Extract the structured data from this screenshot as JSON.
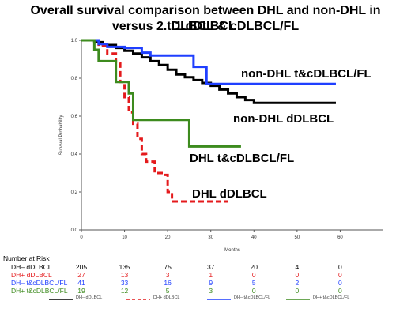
{
  "chart_data": {
    "type": "line",
    "title": "Overall survival comparison between DHL and non-DHL in 1.dDLBCL",
    "subtitle": "versus 2.tDLBCL & cDLBCL/FL",
    "xlabel": "Months",
    "ylabel": "Survival Probability",
    "xlim": [
      0,
      70
    ],
    "ylim": [
      0,
      1.0
    ],
    "x_ticks": [
      "0",
      "10",
      "20",
      "30",
      "40",
      "50",
      "60"
    ],
    "y_ticks": [
      "0.0",
      "0.2",
      "0.4",
      "0.6",
      "0.8",
      "1.0"
    ],
    "grid": false,
    "series": [
      {
        "name": "DH– dDLBCL",
        "annotation": "non-DHL dDLBCL",
        "color": "#000000",
        "dash": false,
        "points": [
          [
            0,
            1.0
          ],
          [
            3,
            0.99
          ],
          [
            5,
            0.975
          ],
          [
            8,
            0.96
          ],
          [
            10,
            0.945
          ],
          [
            12,
            0.93
          ],
          [
            14,
            0.91
          ],
          [
            16,
            0.89
          ],
          [
            18,
            0.87
          ],
          [
            20,
            0.845
          ],
          [
            22,
            0.82
          ],
          [
            24,
            0.805
          ],
          [
            26,
            0.79
          ],
          [
            28,
            0.775
          ],
          [
            30,
            0.76
          ],
          [
            32,
            0.74
          ],
          [
            34,
            0.72
          ],
          [
            36,
            0.7
          ],
          [
            38,
            0.685
          ],
          [
            40,
            0.67
          ],
          [
            59,
            0.67
          ]
        ]
      },
      {
        "name": "DH+ dDLBCL",
        "annotation": "DHL dDLBCL",
        "color": "#e41a1c",
        "dash": true,
        "points": [
          [
            0,
            1.0
          ],
          [
            4,
            0.97
          ],
          [
            6,
            0.93
          ],
          [
            8,
            0.88
          ],
          [
            9,
            0.78
          ],
          [
            10,
            0.7
          ],
          [
            11,
            0.62
          ],
          [
            12,
            0.56
          ],
          [
            13,
            0.48
          ],
          [
            14,
            0.4
          ],
          [
            15,
            0.36
          ],
          [
            17,
            0.3
          ],
          [
            19,
            0.29
          ],
          [
            20,
            0.2
          ],
          [
            21,
            0.15
          ],
          [
            34,
            0.15
          ]
        ]
      },
      {
        "name": "DH– t&cDLBCL/FL",
        "annotation": "non-DHL t&cDLBCL/FL",
        "color": "#1f3fff",
        "dash": false,
        "points": [
          [
            0,
            1.0
          ],
          [
            4,
            0.98
          ],
          [
            6,
            0.965
          ],
          [
            10,
            0.96
          ],
          [
            14,
            0.935
          ],
          [
            16,
            0.92
          ],
          [
            22,
            0.92
          ],
          [
            26,
            0.86
          ],
          [
            28,
            0.86
          ],
          [
            29,
            0.77
          ],
          [
            59,
            0.77
          ]
        ]
      },
      {
        "name": "DH+ t&cDLBCL/FL",
        "annotation": "DHL t&cDLBCL/FL",
        "color": "#3d8b1e",
        "dash": false,
        "points": [
          [
            0,
            1.0
          ],
          [
            3,
            0.95
          ],
          [
            4,
            0.89
          ],
          [
            7,
            0.89
          ],
          [
            8,
            0.78
          ],
          [
            11,
            0.72
          ],
          [
            12,
            0.58
          ],
          [
            24,
            0.58
          ],
          [
            25,
            0.44
          ],
          [
            37,
            0.44
          ]
        ]
      }
    ]
  },
  "risk_table": {
    "title": "Number at Risk",
    "rows": [
      {
        "label": "DH– dDLBCL",
        "color": "#000000",
        "values": [
          "205",
          "135",
          "75",
          "37",
          "20",
          "4",
          "0"
        ]
      },
      {
        "label": "DH+ dDLBCL",
        "color": "#e41a1c",
        "values": [
          "27",
          "13",
          "3",
          "1",
          "0",
          "0",
          "0"
        ]
      },
      {
        "label": "DH– t&cDLBCL/FL",
        "color": "#1f3fff",
        "values": [
          "41",
          "33",
          "16",
          "9",
          "5",
          "2",
          "0"
        ]
      },
      {
        "label": "DH+ t&cDLBCL/FL",
        "color": "#3d8b1e",
        "values": [
          "19",
          "12",
          "5",
          "3",
          "0",
          "0",
          "0"
        ]
      }
    ]
  },
  "legend": [
    {
      "label": "DH– dDLBCL",
      "color": "#000000",
      "dash": false
    },
    {
      "label": "DH+ dDLBCL",
      "color": "#e41a1c",
      "dash": true
    },
    {
      "label": "DH– t&cDLBCL/FL",
      "color": "#1f3fff",
      "dash": false
    },
    {
      "label": "DH+ t&cDLBCL/FL",
      "color": "#3d8b1e",
      "dash": false
    }
  ]
}
